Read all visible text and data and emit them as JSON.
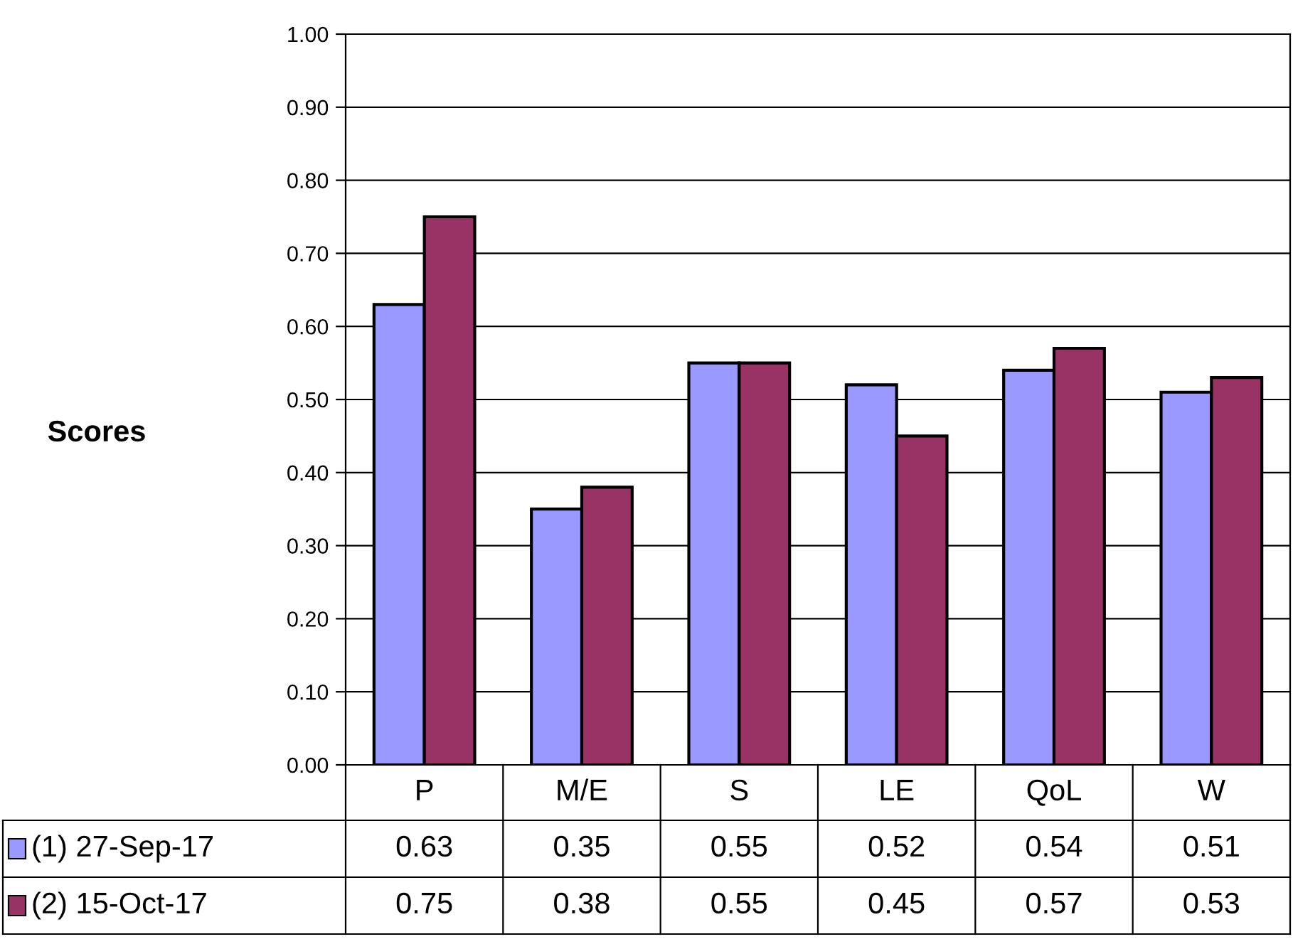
{
  "chart_data": {
    "type": "bar",
    "ylabel": "Scores",
    "categories": [
      "P",
      "M/E",
      "S",
      "LE",
      "QoL",
      "W"
    ],
    "series": [
      {
        "name": "(1) 27-Sep-17",
        "color": "#9999ff",
        "values": [
          0.63,
          0.35,
          0.55,
          0.52,
          0.54,
          0.51
        ]
      },
      {
        "name": "(2) 15-Oct-17",
        "color": "#993366",
        "values": [
          0.75,
          0.38,
          0.55,
          0.45,
          0.57,
          0.53
        ]
      }
    ],
    "ylim": [
      0,
      1
    ],
    "yticks": [
      {
        "value": 0,
        "label": "0.00"
      },
      {
        "value": 0.1,
        "label": "0.10"
      },
      {
        "value": 0.2,
        "label": "0.20"
      },
      {
        "value": 0.3,
        "label": "0.30"
      },
      {
        "value": 0.4,
        "label": "0.40"
      },
      {
        "value": 0.5,
        "label": "0.50"
      },
      {
        "value": 0.6,
        "label": "0.60"
      },
      {
        "value": 0.7,
        "label": "0.70"
      },
      {
        "value": 0.8,
        "label": "0.80"
      },
      {
        "value": 0.9,
        "label": "0.90"
      },
      {
        "value": 1,
        "label": "1.00"
      }
    ],
    "grid": "y",
    "legend": "bottom",
    "data_labels": true
  }
}
